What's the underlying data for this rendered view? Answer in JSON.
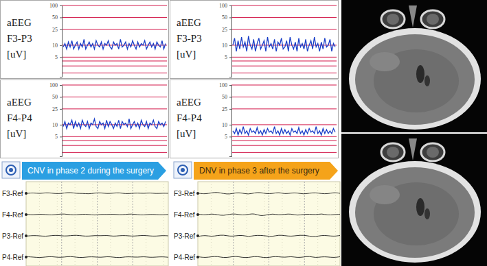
{
  "chart_data": [
    {
      "type": "line",
      "ylabel": [
        "aEEG",
        "F3-P3",
        "[uV]"
      ],
      "log": "y",
      "grid": true,
      "color": "#1a3fc8",
      "ylim": [
        1.6,
        100
      ],
      "yticks": [
        5,
        10,
        25,
        50,
        100
      ],
      "minor_ticks": [
        2,
        3,
        4
      ],
      "values": [
        9,
        11,
        8,
        12,
        9,
        13,
        8,
        10,
        12,
        8,
        11,
        9,
        14,
        8,
        10,
        12,
        9,
        11,
        8,
        13,
        10,
        9,
        12,
        8,
        11,
        10,
        13,
        9,
        8,
        12,
        10,
        11,
        8,
        14,
        9,
        10,
        12,
        8,
        11,
        9,
        13,
        10,
        8,
        12,
        9,
        11,
        10,
        13,
        8,
        10,
        12,
        9,
        11,
        8,
        12,
        10,
        9,
        13,
        8,
        11
      ]
    },
    {
      "type": "line",
      "ylabel": [
        "aEEG",
        "F3-P3",
        "[uV]"
      ],
      "log": "y",
      "grid": true,
      "color": "#1a3fc8",
      "ylim": [
        1.6,
        100
      ],
      "yticks": [
        5,
        10,
        25,
        50,
        100
      ],
      "minor_ticks": [
        2,
        3,
        4
      ],
      "values": [
        10,
        15,
        7,
        13,
        8,
        16,
        9,
        12,
        7,
        17,
        10,
        8,
        14,
        7,
        11,
        15,
        8,
        10,
        13,
        7,
        16,
        9,
        11,
        8,
        14,
        7,
        12,
        10,
        15,
        8,
        9,
        13,
        7,
        16,
        10,
        8,
        12,
        7,
        15,
        9,
        11,
        8,
        14,
        7,
        10,
        13,
        8,
        16,
        9,
        11,
        7,
        12,
        8,
        15,
        9,
        10,
        14,
        7,
        11,
        9
      ]
    },
    {
      "type": "line",
      "ylabel": [
        "aEEG",
        "F4-P4",
        "[uV]"
      ],
      "log": "y",
      "grid": true,
      "color": "#1a3fc8",
      "ylim": [
        1.6,
        100
      ],
      "yticks": [
        5,
        10,
        25,
        50,
        100
      ],
      "minor_ticks": [
        2,
        3,
        4
      ],
      "values": [
        9,
        12,
        8,
        11,
        10,
        13,
        8,
        12,
        9,
        11,
        8,
        13,
        10,
        9,
        12,
        8,
        11,
        10,
        14,
        9,
        8,
        12,
        10,
        11,
        8,
        13,
        9,
        12,
        10,
        8,
        11,
        9,
        13,
        8,
        12,
        10,
        11,
        9,
        14,
        8,
        10,
        12,
        9,
        11,
        8,
        13,
        10,
        9,
        12,
        8,
        11,
        10,
        13,
        9,
        8,
        12,
        10,
        11,
        9,
        12
      ]
    },
    {
      "type": "line",
      "ylabel": [
        "aEEG",
        "F4-P4",
        "[uV]"
      ],
      "log": "y",
      "grid": true,
      "color": "#1a3fc8",
      "ylim": [
        1.6,
        100
      ],
      "yticks": [
        5,
        10,
        25,
        50,
        100
      ],
      "minor_ticks": [
        2,
        3,
        4
      ],
      "values": [
        7,
        6,
        8,
        5.5,
        7.5,
        6,
        9,
        6,
        7,
        5.5,
        8,
        6.5,
        7,
        6,
        8.5,
        6,
        7,
        5.5,
        7.5,
        6,
        8,
        6.5,
        7,
        6,
        9,
        6,
        7,
        5.5,
        8,
        6,
        7.5,
        6,
        7,
        5.5,
        8,
        6.5,
        7,
        6,
        8.5,
        6,
        7,
        5.5,
        7.5,
        6,
        8,
        6.5,
        7,
        6,
        9,
        6,
        7,
        5.5,
        8,
        6,
        7.5,
        6,
        7,
        6,
        8,
        6.5
      ]
    }
  ],
  "eeg": {
    "panels": [
      {
        "banner": "CNV in phase 2 during the surgery",
        "color": "#2a9fe2",
        "ylim": [
          -50,
          50
        ],
        "channels": [
          {
            "name": "F3-Ref",
            "values": [
              0,
              3,
              -2,
              4,
              1,
              -3,
              2,
              5,
              -1,
              0,
              -4,
              2,
              3,
              -2,
              1,
              4,
              -3,
              0,
              2,
              -1,
              3,
              -2,
              1,
              0
            ]
          },
          {
            "name": "F4-Ref",
            "values": [
              1,
              -2,
              3,
              0,
              -3,
              2,
              4,
              -1,
              -2,
              3,
              1,
              -4,
              2,
              0,
              3,
              -2,
              1,
              4,
              -1,
              -3,
              2,
              0,
              -2,
              1
            ]
          },
          {
            "name": "P3-Ref",
            "values": [
              -1,
              2,
              0,
              -3,
              2,
              3,
              -2,
              1,
              4,
              -1,
              -2,
              2,
              0,
              3,
              -3,
              1,
              2,
              -2,
              0,
              3,
              -1,
              -2,
              2,
              0
            ]
          },
          {
            "name": "P4-Ref",
            "values": [
              2,
              0,
              -3,
              1,
              3,
              -2,
              0,
              4,
              -1,
              -3,
              2,
              1,
              -2,
              3,
              0,
              -4,
              2,
              1,
              -1,
              3,
              -2,
              0,
              2,
              -1
            ]
          }
        ]
      },
      {
        "banner": "DNV in phase 3 after the surgery",
        "color": "#f5a31a",
        "ylim": [
          -50,
          50
        ],
        "channels": [
          {
            "name": "F3-Ref",
            "values": [
              0,
              -4,
              3,
              6,
              -2,
              -5,
              4,
              2,
              -6,
              3,
              5,
              -3,
              -1,
              6,
              -4,
              2,
              3,
              -5,
              1,
              4,
              -2,
              -3,
              5,
              0
            ]
          },
          {
            "name": "F4-Ref",
            "values": [
              2,
              -3,
              5,
              -1,
              -6,
              3,
              4,
              -4,
              1,
              6,
              -8,
              -2,
              5,
              -3,
              2,
              4,
              -5,
              1,
              3,
              -2,
              6,
              -4,
              0,
              2
            ]
          },
          {
            "name": "P3-Ref",
            "values": [
              -2,
              3,
              -4,
              2,
              5,
              -3,
              0,
              4,
              -5,
              2,
              3,
              -1,
              -4,
              5,
              1,
              -3,
              2,
              4,
              -2,
              -5,
              3,
              1,
              -3,
              2
            ]
          },
          {
            "name": "P4-Ref",
            "values": [
              1,
              -3,
              2,
              4,
              -4,
              0,
              5,
              -2,
              -3,
              4,
              1,
              -5,
              3,
              2,
              -2,
              4,
              -3,
              0,
              5,
              -4,
              2,
              1,
              -3,
              2
            ]
          }
        ]
      }
    ]
  }
}
